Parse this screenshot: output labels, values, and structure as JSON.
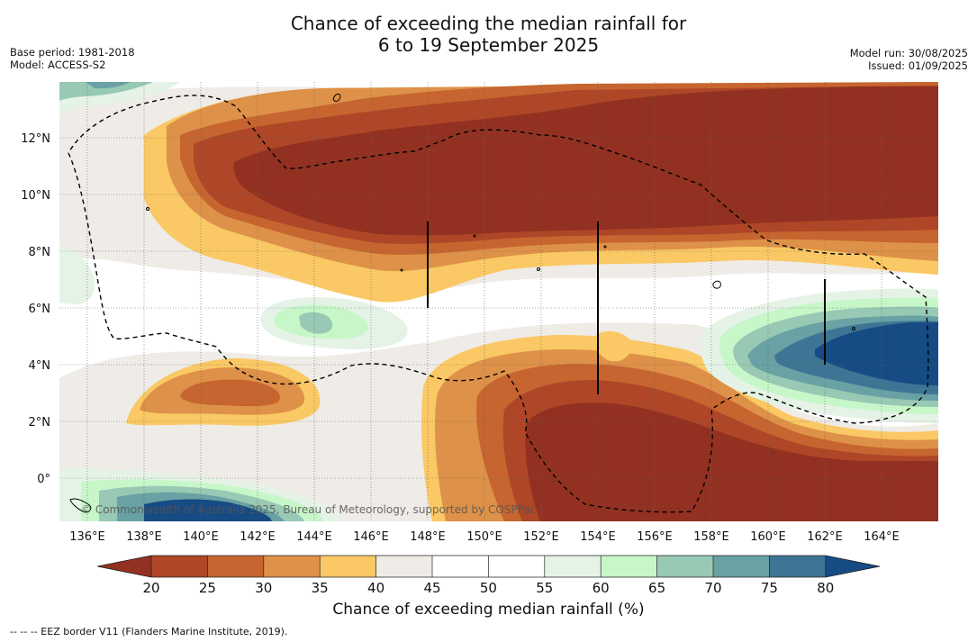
{
  "title_line1": "Chance of exceeding the median rainfall for",
  "title_line2": "6 to 19 September 2025",
  "meta_left": {
    "base_period": "Base period: 1981-2018",
    "model": "Model: ACCESS-S2"
  },
  "meta_right": {
    "model_run": "Model run: 30/08/2025",
    "issued": "Issued: 01/09/2025"
  },
  "map": {
    "lat_labels": [
      "12°N",
      "10°N",
      "8°N",
      "6°N",
      "4°N",
      "2°N",
      "0°"
    ],
    "lon_labels": [
      "136°E",
      "138°E",
      "140°E",
      "142°E",
      "144°E",
      "146°E",
      "148°E",
      "150°E",
      "152°E",
      "154°E",
      "156°E",
      "158°E",
      "160°E",
      "162°E",
      "164°E"
    ],
    "copyright": "© Commonwealth of Australia 2025, Bureau of Meteorology, supported by COSPPac"
  },
  "colorbar": {
    "ticks": [
      "20",
      "25",
      "30",
      "35",
      "40",
      "45",
      "50",
      "55",
      "60",
      "65",
      "70",
      "75",
      "80"
    ],
    "colors": [
      "#923121",
      "#ae4627",
      "#c6652f",
      "#de9148",
      "#fac864",
      "#efebe6",
      "#ffffff",
      "#ffffff",
      "#e5f3e6",
      "#c7f6c9",
      "#98c9b4",
      "#69a1a4",
      "#3f7594",
      "#164b84"
    ],
    "title": "Chance of exceeding median rainfall (%)"
  },
  "footnote": "--  --  -- EEZ border V11 (Flanders Marine Institute, 2019)."
}
